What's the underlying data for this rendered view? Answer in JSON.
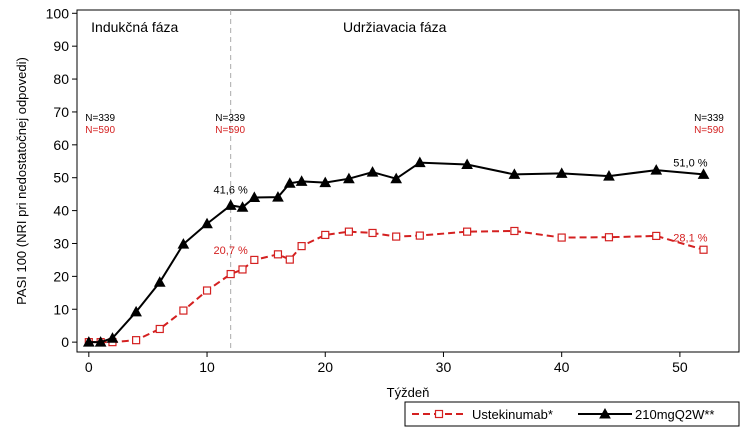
{
  "chart_data": {
    "type": "line",
    "xlabel": "Týždeň",
    "ylabel": "PASI 100 (NRI pri nedostatočnej odpovedi)",
    "xlim": [
      -1,
      55
    ],
    "ylim": [
      -3,
      101
    ],
    "xticks": [
      0,
      10,
      20,
      30,
      40,
      50
    ],
    "yticks": [
      0,
      10,
      20,
      30,
      40,
      50,
      60,
      70,
      80,
      90,
      100
    ],
    "grid": false,
    "legend_position": "bottom-right",
    "phase_divider_x": 12,
    "phases": [
      {
        "label": "Indukčná fáza",
        "x": 0.2
      },
      {
        "label": "Udržiavacia fáza",
        "x": 21.5
      }
    ],
    "n_labels": [
      {
        "x": -0.3,
        "lines": [
          "N=339",
          "N=590"
        ]
      },
      {
        "x": 10.7,
        "lines": [
          "N=339",
          "N=590"
        ]
      },
      {
        "x": 51.2,
        "lines": [
          "N=339",
          "N=590"
        ]
      }
    ],
    "series": [
      {
        "name": "210mgQ2W**",
        "color": "#000000",
        "marker": "triangle",
        "dash": "solid",
        "x": [
          0,
          1,
          2,
          4,
          6,
          8,
          10,
          12,
          13,
          14,
          16,
          17,
          18,
          20,
          22,
          24,
          26,
          28,
          32,
          36,
          40,
          44,
          48,
          52
        ],
        "y": [
          0,
          0,
          1.2,
          9.2,
          18.2,
          29.8,
          36,
          41.6,
          41,
          44,
          44.1,
          48.3,
          48.9,
          48.5,
          49.7,
          51.7,
          49.7,
          54.6,
          54,
          51,
          51.3,
          50.5,
          52.3,
          51
        ]
      },
      {
        "name": "Ustekinumab*",
        "color": "#d42020",
        "marker": "square-open",
        "dash": "dashed",
        "x": [
          0,
          1,
          2,
          4,
          6,
          8,
          10,
          12,
          13,
          14,
          16,
          17,
          18,
          20,
          22,
          24,
          26,
          28,
          32,
          36,
          40,
          44,
          48,
          52
        ],
        "y": [
          0,
          0,
          0,
          0.6,
          4,
          9.6,
          15.7,
          20.7,
          22.1,
          25,
          26.7,
          25.1,
          29.2,
          32.6,
          33.6,
          33.2,
          32.1,
          32.4,
          33.6,
          33.8,
          31.8,
          31.9,
          32.3,
          28.1
        ]
      }
    ],
    "annotations": [
      {
        "text": "41,6 %",
        "x": 12,
        "y": 41.6,
        "series": "210mgQ2W**"
      },
      {
        "text": "51,0 %",
        "x": 52,
        "y": 51,
        "series": "210mgQ2W**"
      },
      {
        "text": "20,7 %",
        "x": 12,
        "y": 20.7,
        "series": "Ustekinumab*"
      },
      {
        "text": "28,1 %",
        "x": 52,
        "y": 28.1,
        "series": "Ustekinumab*"
      }
    ],
    "legend": [
      {
        "label": "Ustekinumab*",
        "series": "Ustekinumab*"
      },
      {
        "label": "210mgQ2W**",
        "series": "210mgQ2W**"
      }
    ]
  }
}
